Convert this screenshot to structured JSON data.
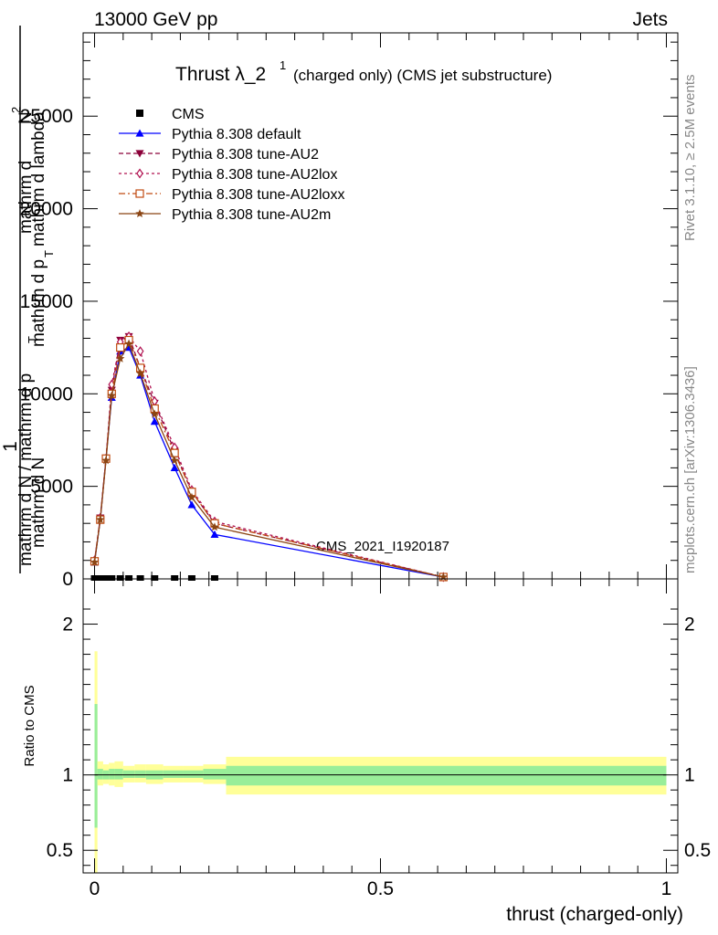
{
  "header": {
    "left": "13000 GeV pp",
    "right": "Jets"
  },
  "title": {
    "main": "Thrust λ_2",
    "sup": "1",
    "rest": "(charged only) (CMS jet substructure)"
  },
  "side_labels": {
    "rivet": "Rivet 3.1.10, ≥ 2.5M events",
    "mcplots": "mcplots.cern.ch [arXiv:1306.3436]"
  },
  "watermark": "CMS_2021_I1920187",
  "ylabel": {
    "one": "1",
    "num_top": "mathrm d",
    "num_sup": "2",
    "num_n": "N",
    "den_top": "mathrm d p",
    "den_sub": "T",
    "den_rest": "mathrm d lambda",
    "lower_num": "mathrm d N",
    "lower_den": "mathrm d p",
    "lower_den_sub": "T",
    "full_den": "mathrm d N / mathrm d p"
  },
  "ratio_ylabel": "Ratio to CMS",
  "xlabel": "thrust (charged-only)",
  "legend": [
    {
      "label": "CMS",
      "color": "#000000",
      "marker": "square",
      "dash": ""
    },
    {
      "label": "Pythia 8.308 default",
      "color": "#0000ff",
      "marker": "triangle-up",
      "dash": ""
    },
    {
      "label": "Pythia 8.308 tune-AU2",
      "color": "#8b0039",
      "marker": "triangle-down",
      "dash": "5,3"
    },
    {
      "label": "Pythia 8.308 tune-AU2lox",
      "color": "#b0104f",
      "marker": "diamond-open",
      "dash": "3,3"
    },
    {
      "label": "Pythia 8.308 tune-AU2loxx",
      "color": "#c04a10",
      "marker": "square-open",
      "dash": "7,3,2,3"
    },
    {
      "label": "Pythia 8.308 tune-AU2m",
      "color": "#8b4513",
      "marker": "star",
      "dash": ""
    }
  ],
  "chart_data": [
    {
      "type": "line",
      "xlim": [
        -0.02,
        1.02
      ],
      "ylim": [
        0,
        29500
      ],
      "yticks": [
        0,
        5000,
        10000,
        15000,
        20000,
        25000
      ],
      "ytick_labels": [
        "0",
        "5000",
        "10000",
        "15000",
        "20000",
        "25000"
      ],
      "x": [
        0.0,
        0.01,
        0.02,
        0.03,
        0.045,
        0.06,
        0.08,
        0.105,
        0.14,
        0.17,
        0.21,
        0.61
      ],
      "cms": {
        "x": [
          0.0,
          0.01,
          0.02,
          0.03,
          0.045,
          0.06,
          0.08,
          0.105,
          0.14,
          0.17,
          0.21
        ],
        "values": [
          0,
          0,
          0,
          0,
          0,
          0,
          0,
          0,
          0,
          0,
          0
        ]
      },
      "series": [
        {
          "name": "Pythia 8.308 default",
          "values": [
            900,
            3200,
            6500,
            9800,
            12300,
            12500,
            11000,
            8500,
            6000,
            4000,
            2400,
            100
          ]
        },
        {
          "name": "Pythia 8.308 tune-AU2",
          "values": [
            950,
            3300,
            6500,
            10200,
            12900,
            13100,
            11400,
            9500,
            6900,
            4700,
            3000,
            100
          ]
        },
        {
          "name": "Pythia 8.308 tune-AU2lox",
          "values": [
            1000,
            3300,
            6500,
            10500,
            12800,
            13100,
            12300,
            9600,
            7100,
            4800,
            3100,
            100
          ]
        },
        {
          "name": "Pythia 8.308 tune-AU2loxx",
          "values": [
            950,
            3200,
            6500,
            10000,
            12500,
            12900,
            11400,
            9200,
            6800,
            4700,
            3000,
            100
          ]
        },
        {
          "name": "Pythia 8.308 tune-AU2m",
          "values": [
            900,
            3200,
            6400,
            9900,
            11900,
            12700,
            11100,
            8900,
            6400,
            4400,
            2800,
            100
          ]
        }
      ]
    },
    {
      "type": "area",
      "xlim": [
        -0.02,
        1.02
      ],
      "ylim": [
        0.35,
        2.3
      ],
      "yticks": [
        0.5,
        1,
        2
      ],
      "ytick_labels": [
        "0.5",
        "1",
        "2"
      ],
      "xticks": [
        0,
        0.5,
        1
      ],
      "xtick_labels": [
        "0",
        "0.5",
        "1"
      ],
      "bins": [
        {
          "x0": 0.0,
          "x1": 0.005,
          "inner": [
            0.65,
            1.47
          ],
          "outer": [
            0.35,
            1.82
          ]
        },
        {
          "x0": 0.005,
          "x1": 0.015,
          "inner": [
            0.97,
            1.04
          ],
          "outer": [
            0.93,
            1.09
          ]
        },
        {
          "x0": 0.015,
          "x1": 0.025,
          "inner": [
            0.97,
            1.03
          ],
          "outer": [
            0.94,
            1.07
          ]
        },
        {
          "x0": 0.025,
          "x1": 0.035,
          "inner": [
            0.97,
            1.04
          ],
          "outer": [
            0.93,
            1.08
          ]
        },
        {
          "x0": 0.035,
          "x1": 0.05,
          "inner": [
            0.97,
            1.04
          ],
          "outer": [
            0.92,
            1.09
          ]
        },
        {
          "x0": 0.05,
          "x1": 0.07,
          "inner": [
            0.98,
            1.03
          ],
          "outer": [
            0.95,
            1.06
          ]
        },
        {
          "x0": 0.07,
          "x1": 0.09,
          "inner": [
            0.98,
            1.03
          ],
          "outer": [
            0.95,
            1.07
          ]
        },
        {
          "x0": 0.09,
          "x1": 0.12,
          "inner": [
            0.97,
            1.03
          ],
          "outer": [
            0.94,
            1.07
          ]
        },
        {
          "x0": 0.12,
          "x1": 0.155,
          "inner": [
            0.98,
            1.03
          ],
          "outer": [
            0.95,
            1.06
          ]
        },
        {
          "x0": 0.155,
          "x1": 0.19,
          "inner": [
            0.98,
            1.03
          ],
          "outer": [
            0.95,
            1.06
          ]
        },
        {
          "x0": 0.19,
          "x1": 0.23,
          "inner": [
            0.97,
            1.04
          ],
          "outer": [
            0.94,
            1.07
          ]
        },
        {
          "x0": 0.23,
          "x1": 1.0,
          "inner": [
            0.93,
            1.06
          ],
          "outer": [
            0.87,
            1.12
          ]
        }
      ],
      "reference": 1.0
    }
  ]
}
